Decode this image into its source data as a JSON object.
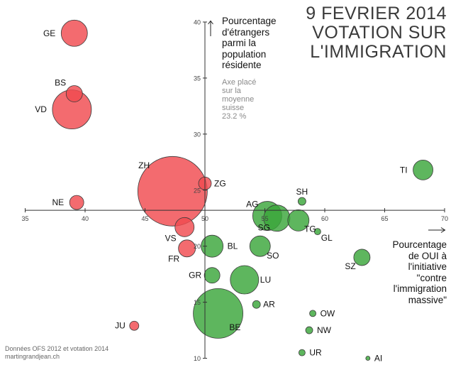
{
  "title": [
    "9 FEVRIER 2014",
    "VOTATION SUR",
    "L'IMMIGRATION"
  ],
  "ylabel_lines": [
    "Pourcentage",
    "d'étrangers",
    "parmi la",
    "population",
    "résidente"
  ],
  "note_lines": [
    "Axe placé",
    "sur la",
    "moyenne",
    "suisse",
    "23.2 %"
  ],
  "xlabel_lines": [
    "Pourcentage",
    "de OUI à",
    "l'initiative",
    "\"contre",
    "l'immigration",
    "massive\""
  ],
  "credits": [
    "Données OFS 2012 et votation 2014",
    "martingrandjean.ch"
  ],
  "colors": {
    "oui_majority": "#3aa63a",
    "non_majority": "#f04a4f",
    "axis": "#333333"
  },
  "chart_data": {
    "type": "scatter",
    "title": "9 FEVRIER 2014 VOTATION SUR L'IMMIGRATION",
    "xlabel": "Pourcentage de OUI à l'initiative \"contre l'immigration massive\"",
    "ylabel": "Pourcentage d'étrangers parmi la population résidente",
    "xlim": [
      35,
      70
    ],
    "ylim": [
      10,
      40
    ],
    "x_ticks": [
      35,
      40,
      45,
      50,
      55,
      60,
      65,
      70
    ],
    "y_ticks": [
      10,
      15,
      20,
      25,
      30,
      35,
      40
    ],
    "x_axis_at_y": 23.2,
    "y_axis_at_x": 50,
    "grid": false,
    "bubble_size": "population",
    "points": [
      {
        "label": "GE",
        "x": 39.1,
        "y": 39.0,
        "size": 18.5,
        "group": "non"
      },
      {
        "label": "BS",
        "x": 39.1,
        "y": 33.6,
        "size": 11.5,
        "group": "non"
      },
      {
        "label": "VD",
        "x": 38.9,
        "y": 32.2,
        "size": 27.5,
        "group": "non"
      },
      {
        "label": "ZH",
        "x": 47.3,
        "y": 24.9,
        "size": 49,
        "group": "non"
      },
      {
        "label": "ZG",
        "x": 50.0,
        "y": 25.6,
        "size": 9,
        "group": "non"
      },
      {
        "label": "NE",
        "x": 39.3,
        "y": 23.9,
        "size": 10,
        "group": "non"
      },
      {
        "label": "VS",
        "x": 48.3,
        "y": 21.7,
        "size": 13.5,
        "group": "non"
      },
      {
        "label": "FR",
        "x": 48.5,
        "y": 19.8,
        "size": 12,
        "group": "non"
      },
      {
        "label": "JU",
        "x": 44.1,
        "y": 12.9,
        "size": 6.5,
        "group": "non"
      },
      {
        "label": "TI",
        "x": 68.2,
        "y": 26.8,
        "size": 14,
        "group": "oui"
      },
      {
        "label": "AG",
        "x": 55.2,
        "y": 22.7,
        "size": 20.5,
        "group": "oui"
      },
      {
        "label": "SH",
        "x": 58.1,
        "y": 24.0,
        "size": 5.5,
        "group": "oui"
      },
      {
        "label": "SG",
        "x": 56.0,
        "y": 22.5,
        "size": 18.5,
        "group": "oui"
      },
      {
        "label": "TG",
        "x": 57.8,
        "y": 22.3,
        "size": 15,
        "group": "oui"
      },
      {
        "label": "GL",
        "x": 59.4,
        "y": 21.3,
        "size": 4.5,
        "group": "oui"
      },
      {
        "label": "BL",
        "x": 50.6,
        "y": 20.0,
        "size": 15.5,
        "group": "oui"
      },
      {
        "label": "SO",
        "x": 54.6,
        "y": 20.0,
        "size": 14.5,
        "group": "oui"
      },
      {
        "label": "SZ",
        "x": 63.1,
        "y": 19.0,
        "size": 11.5,
        "group": "oui"
      },
      {
        "label": "GR",
        "x": 50.6,
        "y": 17.4,
        "size": 11,
        "group": "oui"
      },
      {
        "label": "LU",
        "x": 53.3,
        "y": 17.0,
        "size": 20,
        "group": "oui"
      },
      {
        "label": "AR",
        "x": 54.3,
        "y": 14.8,
        "size": 5.5,
        "group": "oui"
      },
      {
        "label": "BE",
        "x": 51.1,
        "y": 14.0,
        "size": 35,
        "group": "oui"
      },
      {
        "label": "OW",
        "x": 59.0,
        "y": 14.0,
        "size": 4.5,
        "group": "oui"
      },
      {
        "label": "NW",
        "x": 58.7,
        "y": 12.5,
        "size": 5,
        "group": "oui"
      },
      {
        "label": "UR",
        "x": 58.1,
        "y": 10.5,
        "size": 4.5,
        "group": "oui"
      },
      {
        "label": "AI",
        "x": 63.6,
        "y": 10.0,
        "size": 3,
        "group": "oui"
      }
    ]
  }
}
